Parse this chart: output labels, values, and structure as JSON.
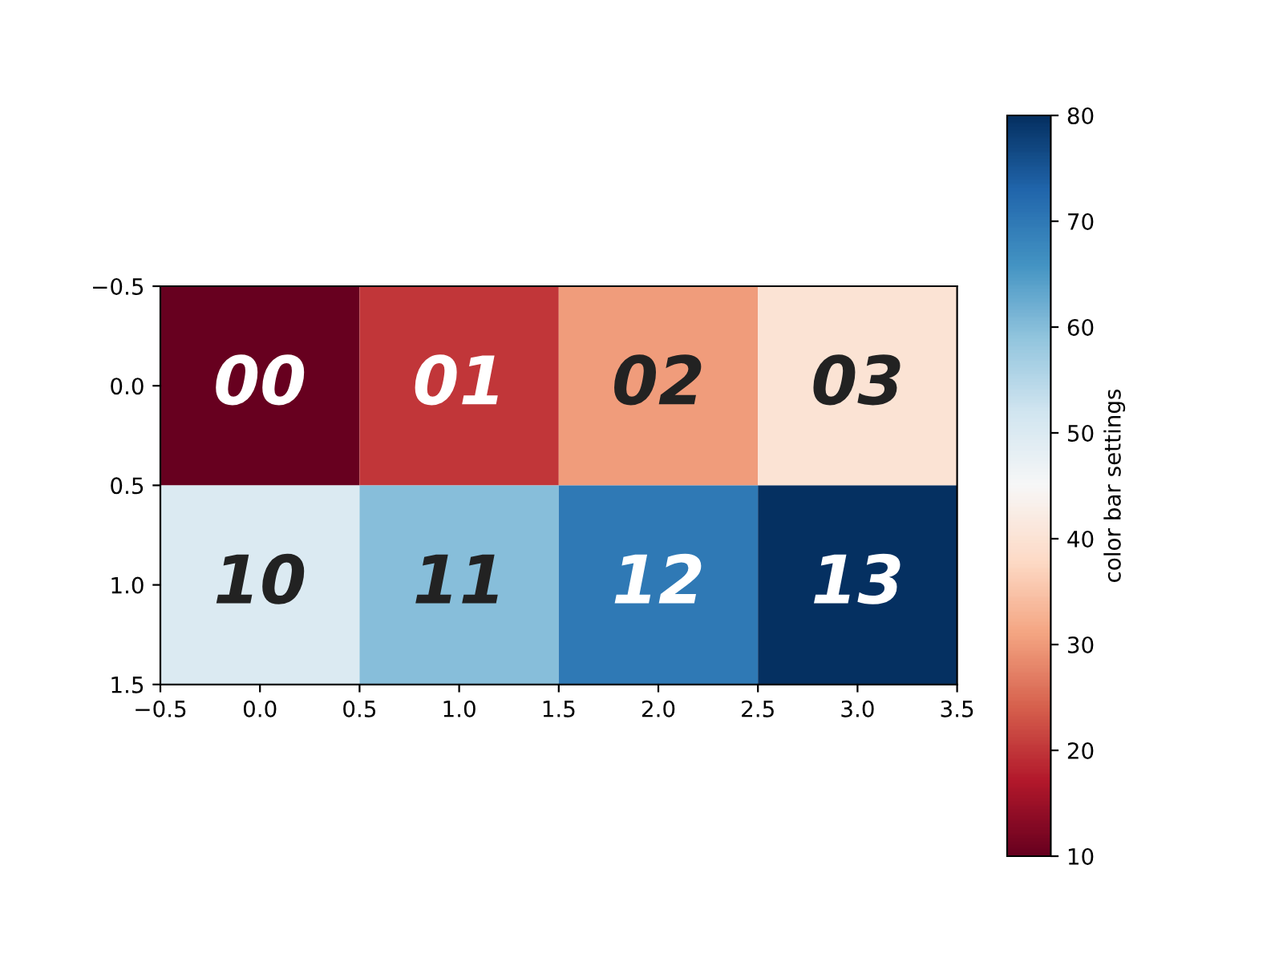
{
  "chart_data": {
    "type": "heatmap",
    "cells": [
      [
        10,
        20,
        30,
        40
      ],
      [
        50,
        60,
        70,
        80
      ]
    ],
    "annotations": [
      "00",
      "01",
      "02",
      "03",
      "10",
      "11",
      "12",
      "13"
    ],
    "clim": [
      10,
      80
    ],
    "cticks": [
      10,
      20,
      30,
      40,
      50,
      60,
      70,
      80
    ],
    "clabel": "color bar settings",
    "xlim": [
      -0.5,
      3.5
    ],
    "xticks": [
      {
        "value": -0.5,
        "label": "−0.5"
      },
      {
        "value": 0.0,
        "label": "0.0"
      },
      {
        "value": 0.5,
        "label": "0.5"
      },
      {
        "value": 1.0,
        "label": "1.0"
      },
      {
        "value": 1.5,
        "label": "1.5"
      },
      {
        "value": 2.0,
        "label": "2.0"
      },
      {
        "value": 2.5,
        "label": "2.5"
      },
      {
        "value": 3.0,
        "label": "3.0"
      },
      {
        "value": 3.5,
        "label": "3.5"
      }
    ],
    "ylim": [
      1.5,
      -0.5
    ],
    "yticks": [
      {
        "value": -0.5,
        "label": "−0.5"
      },
      {
        "value": 0.0,
        "label": "0.0"
      },
      {
        "value": 0.5,
        "label": "0.5"
      },
      {
        "value": 1.0,
        "label": "1.0"
      },
      {
        "value": 1.5,
        "label": "1.5"
      }
    ]
  }
}
